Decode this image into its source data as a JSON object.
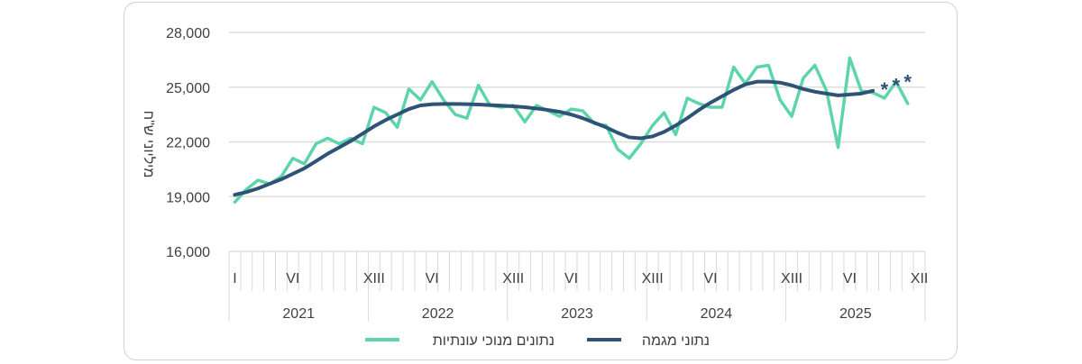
{
  "chart_data": {
    "type": "line",
    "ylabel": "מיליוני ש\"ח",
    "ylim": [
      16000,
      28000
    ],
    "yticks": [
      16000,
      19000,
      22000,
      25000,
      28000
    ],
    "ytick_labels": [
      "16,000",
      "19,000",
      "22,000",
      "25,000",
      "28,000"
    ],
    "grid": true,
    "legend_position": "bottom",
    "x_month_labels": [
      {
        "index": 0,
        "label": "I"
      },
      {
        "index": 5,
        "label": "VI"
      },
      {
        "index": 12,
        "label": "XIII"
      },
      {
        "index": 17,
        "label": "VI"
      },
      {
        "index": 24,
        "label": "XIII"
      },
      {
        "index": 29,
        "label": "VI"
      },
      {
        "index": 36,
        "label": "XIII"
      },
      {
        "index": 41,
        "label": "VI"
      },
      {
        "index": 48,
        "label": "XIII"
      },
      {
        "index": 53,
        "label": "VI"
      },
      {
        "index": 59,
        "label": "XII"
      }
    ],
    "years": [
      "2021",
      "2022",
      "2023",
      "2024",
      "2025"
    ],
    "series": [
      {
        "name": "נתונים מנוכי עונתיות",
        "color": "#5ED4AC",
        "values": [
          18700,
          19400,
          19900,
          19700,
          20100,
          21100,
          20800,
          21900,
          22200,
          21900,
          22200,
          21900,
          23900,
          23600,
          22800,
          24900,
          24300,
          25300,
          24300,
          23500,
          23300,
          25100,
          24000,
          23900,
          24000,
          23100,
          24000,
          23700,
          23400,
          23800,
          23700,
          23000,
          22900,
          21600,
          21100,
          21900,
          22900,
          23600,
          22400,
          24400,
          24100,
          23900,
          23900,
          26100,
          25200,
          26100,
          26200,
          24300,
          23400,
          25500,
          26200,
          24800,
          21700,
          26600,
          24800,
          24700,
          24400,
          25300,
          24100
        ]
      },
      {
        "name": "נתוני מגמה",
        "color": "#2F5377",
        "values": [
          19100,
          19250,
          19450,
          19700,
          19950,
          20250,
          20550,
          20950,
          21350,
          21700,
          22050,
          22450,
          22850,
          23200,
          23500,
          23800,
          24000,
          24060,
          24080,
          24080,
          24070,
          24050,
          24020,
          23990,
          23950,
          23900,
          23830,
          23750,
          23650,
          23500,
          23300,
          23050,
          22800,
          22500,
          22250,
          22200,
          22300,
          22550,
          22900,
          23300,
          23750,
          24150,
          24500,
          24850,
          25150,
          25300,
          25300,
          25250,
          25100,
          24900,
          24750,
          24650,
          24550,
          24600,
          24650,
          24800
        ],
        "marker_values": [
          25000,
          25200,
          25400
        ]
      }
    ]
  }
}
